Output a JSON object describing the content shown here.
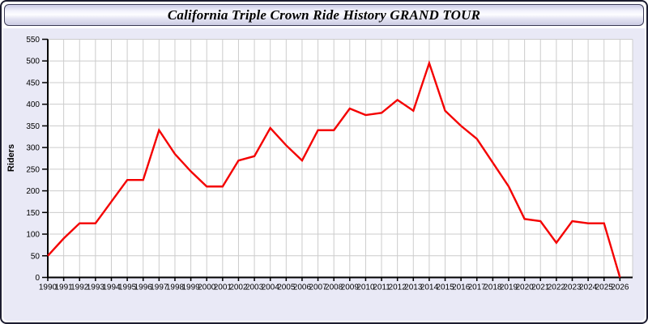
{
  "header": {
    "title": "California Triple Crown Ride History GRAND TOUR"
  },
  "colors": {
    "line": "#f40000",
    "grid": "#cccccc",
    "axis": "#000000",
    "plot_background": "#ffffff",
    "page_background": "#e9e9f6",
    "window_border": "#1c1c30",
    "label_text": "#000000"
  },
  "chart_data": {
    "type": "line",
    "title": "California Triple Crown Ride History GRAND TOUR",
    "xlabel": "",
    "ylabel": "Riders",
    "categories": [
      "1990",
      "1991",
      "1992",
      "1993",
      "1994",
      "1995",
      "1996",
      "1997",
      "1998",
      "1999",
      "2000",
      "2001",
      "2002",
      "2003",
      "2004",
      "2005",
      "2006",
      "2007",
      "2008",
      "2009",
      "2010",
      "2011",
      "2012",
      "2013",
      "2014",
      "2015",
      "2016",
      "2017",
      "2018",
      "2019",
      "2020",
      "2021",
      "2022",
      "2023",
      "2024",
      "2025",
      "2026"
    ],
    "series": [
      {
        "name": "Riders",
        "values": [
          50,
          90,
          125,
          125,
          175,
          225,
          225,
          340,
          285,
          245,
          210,
          210,
          270,
          280,
          345,
          305,
          270,
          340,
          340,
          390,
          375,
          380,
          410,
          385,
          495,
          385,
          350,
          320,
          265,
          210,
          135,
          130,
          80,
          130,
          125,
          125,
          0
        ]
      }
    ],
    "ylim": [
      0,
      550
    ],
    "y_ticks": [
      0,
      50,
      100,
      150,
      200,
      250,
      300,
      350,
      400,
      450,
      500,
      550
    ],
    "grid": true,
    "legend_position": "none",
    "line_color": "#f40000"
  }
}
